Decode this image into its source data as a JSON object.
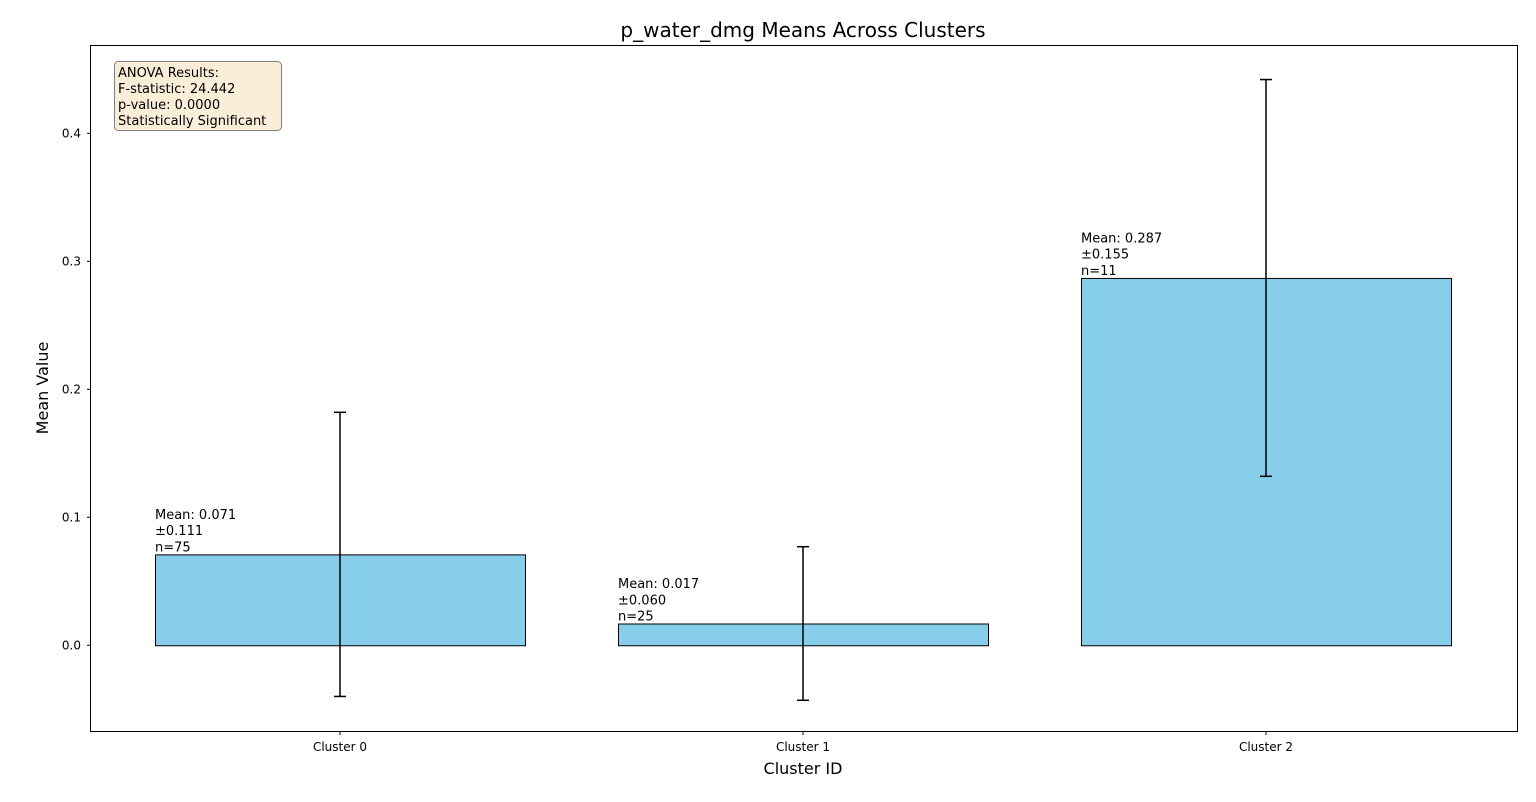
{
  "chart_data": {
    "type": "bar",
    "title": "p_water_dmg Means Across Clusters",
    "xlabel": "Cluster ID",
    "ylabel": "Mean Value",
    "categories": [
      "Cluster 0",
      "Cluster 1",
      "Cluster 2"
    ],
    "values": [
      0.071,
      0.017,
      0.287
    ],
    "errors": [
      0.111,
      0.06,
      0.155
    ],
    "n": [
      75,
      25,
      11
    ],
    "bar_labels": [
      [
        "Mean: 0.071",
        "±0.111",
        "n=75"
      ],
      [
        "Mean: 0.017",
        "±0.060",
        "n=25"
      ],
      [
        "Mean: 0.287",
        "±0.155",
        "n=11"
      ]
    ],
    "ylim": [
      -0.067,
      0.469
    ],
    "yticks": [
      0.0,
      0.1,
      0.2,
      0.3,
      0.4
    ],
    "ytick_labels": [
      "0.0",
      "0.1",
      "0.2",
      "0.3",
      "0.4"
    ],
    "grid": false,
    "bar_color": "#87CEEB",
    "bar_edge_color": "#000000",
    "annotation": {
      "position": "top-left",
      "lines": [
        "ANOVA Results:",
        "F-statistic: 24.442",
        "p-value: 0.0000",
        "Statistically Significant"
      ],
      "background": "#F5DEB3",
      "border": "#7f7f7f"
    }
  }
}
